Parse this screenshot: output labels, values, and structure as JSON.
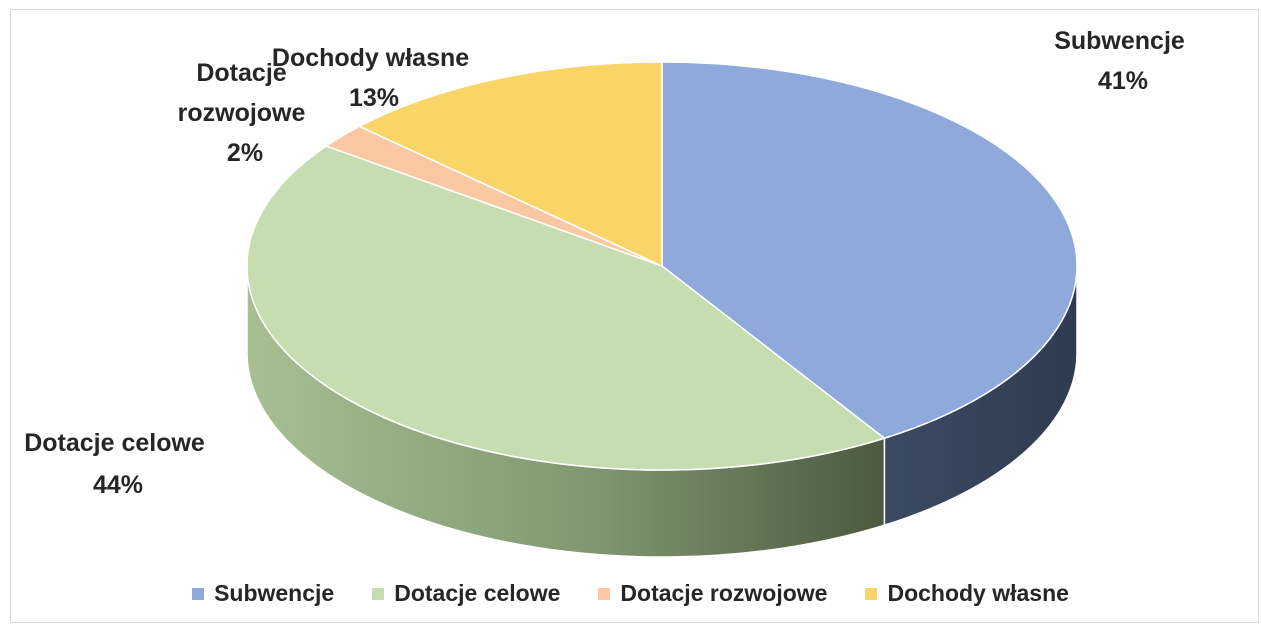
{
  "chart_data": {
    "type": "pie",
    "style": "3d",
    "categories": [
      "Subwencje",
      "Dotacje celowe",
      "Dotacje rozwojowe",
      "Dochody własne"
    ],
    "values": [
      41,
      44,
      2,
      13
    ],
    "unit": "%",
    "colors": [
      "#8FA9DB",
      "#C5DDB0",
      "#F9C8A2",
      "#F9D568"
    ],
    "data_labels": [
      {
        "name_lines": [
          "Subwencje"
        ],
        "value": "41%"
      },
      {
        "name_lines": [
          "Dotacje celowe"
        ],
        "value": "44%"
      },
      {
        "name_lines": [
          "Dotacje",
          "rozwojowe"
        ],
        "value": "2%"
      },
      {
        "name_lines": [
          "Dochody własne"
        ],
        "value": "13%"
      }
    ],
    "legend": {
      "position": "bottom",
      "entries": [
        "Subwencje",
        "Dotacje celowe",
        "Dotacje rozwojowe",
        "Dochody własne"
      ]
    }
  }
}
